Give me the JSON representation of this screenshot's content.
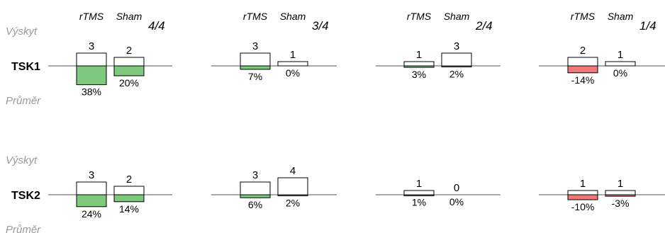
{
  "chart_data": {
    "type": "bar",
    "labels": {
      "occurrence": "Výskyt",
      "mean": "Průměr",
      "series": [
        "rTMS",
        "Sham"
      ]
    },
    "columns": [
      "4/4",
      "3/4",
      "2/4",
      "1/4"
    ],
    "rows": [
      {
        "name": "TSK1",
        "cells": [
          {
            "counts": [
              3,
              2
            ],
            "percents": [
              38,
              20
            ],
            "count_labels": [
              "3",
              "2"
            ],
            "percent_labels": [
              "38%",
              "20%"
            ]
          },
          {
            "counts": [
              3,
              1
            ],
            "percents": [
              7,
              0
            ],
            "count_labels": [
              "3",
              "1"
            ],
            "percent_labels": [
              "7%",
              "0%"
            ]
          },
          {
            "counts": [
              1,
              3
            ],
            "percents": [
              3,
              2
            ],
            "count_labels": [
              "1",
              "3"
            ],
            "percent_labels": [
              "3%",
              "2%"
            ]
          },
          {
            "counts": [
              2,
              1
            ],
            "percents": [
              -14,
              0
            ],
            "count_labels": [
              "2",
              "1"
            ],
            "percent_labels": [
              "-14%",
              "0%"
            ]
          }
        ]
      },
      {
        "name": "TSK2",
        "cells": [
          {
            "counts": [
              3,
              2
            ],
            "percents": [
              24,
              14
            ],
            "count_labels": [
              "3",
              "2"
            ],
            "percent_labels": [
              "24%",
              "14%"
            ]
          },
          {
            "counts": [
              3,
              4
            ],
            "percents": [
              6,
              2
            ],
            "count_labels": [
              "3",
              "4"
            ],
            "percent_labels": [
              "6%",
              "2%"
            ]
          },
          {
            "counts": [
              1,
              0
            ],
            "percents": [
              1,
              0
            ],
            "count_labels": [
              "1",
              "0"
            ],
            "percent_labels": [
              "1%",
              "0%"
            ]
          },
          {
            "counts": [
              1,
              1
            ],
            "percents": [
              -10,
              -3
            ],
            "count_labels": [
              "1",
              "1"
            ],
            "percent_labels": [
              "-10%",
              "-3%"
            ]
          }
        ]
      }
    ],
    "colors": {
      "positive": "#7fc97f",
      "negative": "#f07878",
      "outline": "#000000",
      "baseline": "#555555"
    }
  }
}
